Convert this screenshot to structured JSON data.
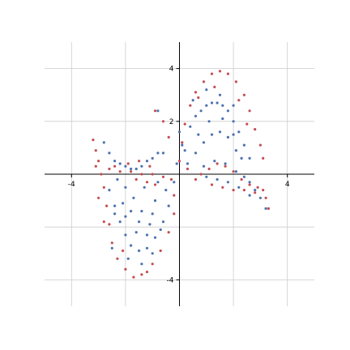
{
  "chart_data": {
    "type": "scatter",
    "title": "",
    "xlabel": "",
    "ylabel": "",
    "xlim": [
      -5,
      5
    ],
    "ylim": [
      -5,
      5
    ],
    "grid": true,
    "axes_through_origin": true,
    "x_ticks": [
      -4,
      4
    ],
    "y_ticks": [
      -4,
      2,
      4
    ],
    "x_tick_labels": [
      "-4",
      "4"
    ],
    "y_tick_labels": [
      "-4",
      "2",
      "4"
    ],
    "series": [
      {
        "color": "#4C72B0",
        "marker": "dot",
        "points": [
          [
            -2.8,
            1.2
          ],
          [
            -2.6,
            0.8
          ],
          [
            -2.4,
            0.5
          ],
          [
            -2.2,
            0.4
          ],
          [
            -2.0,
            0.3
          ],
          [
            -1.8,
            0.2
          ],
          [
            -1.6,
            0.2
          ],
          [
            -1.4,
            0.3
          ],
          [
            -1.2,
            0.5
          ],
          [
            -1.0,
            0.6
          ],
          [
            -0.8,
            0.8
          ],
          [
            -0.6,
            0.8
          ],
          [
            -2.6,
            -0.6
          ],
          [
            -2.4,
            -1.2
          ],
          [
            -2.2,
            -1.8
          ],
          [
            -2.0,
            -2.3
          ],
          [
            -1.8,
            -2.7
          ],
          [
            -1.5,
            -2.9
          ],
          [
            -1.2,
            -2.8
          ],
          [
            -0.9,
            -2.4
          ],
          [
            -0.6,
            -1.8
          ],
          [
            -0.4,
            -1.2
          ],
          [
            -2.3,
            -0.2
          ],
          [
            -2.0,
            -0.5
          ],
          [
            -1.7,
            -0.9
          ],
          [
            -1.4,
            -1.4
          ],
          [
            -1.1,
            -1.9
          ],
          [
            -0.9,
            -1.0
          ],
          [
            -1.3,
            -0.5
          ],
          [
            -1.8,
            -1.4
          ],
          [
            -2.1,
            -1.1
          ],
          [
            -1.6,
            -2.2
          ],
          [
            -1.2,
            -2.3
          ],
          [
            -0.8,
            -0.3
          ],
          [
            -0.5,
            -0.6
          ],
          [
            -2.5,
            -2.8
          ],
          [
            -1.9,
            -3.2
          ],
          [
            -1.4,
            -3.4
          ],
          [
            -0.8,
            2.4
          ],
          [
            0.0,
            1.6
          ],
          [
            0.2,
            0.9
          ],
          [
            0.4,
            1.8
          ],
          [
            0.6,
            2.2
          ],
          [
            0.8,
            2.4
          ],
          [
            1.0,
            2.6
          ],
          [
            1.2,
            2.7
          ],
          [
            1.4,
            2.7
          ],
          [
            1.6,
            2.6
          ],
          [
            1.8,
            2.4
          ],
          [
            2.0,
            2.0
          ],
          [
            2.2,
            1.6
          ],
          [
            2.4,
            1.1
          ],
          [
            2.6,
            0.6
          ],
          [
            0.3,
            0.4
          ],
          [
            0.6,
            0.8
          ],
          [
            0.9,
            1.2
          ],
          [
            1.2,
            1.5
          ],
          [
            1.5,
            1.6
          ],
          [
            1.8,
            1.4
          ],
          [
            2.1,
            0.9
          ],
          [
            0.5,
            2.8
          ],
          [
            1.0,
            3.2
          ],
          [
            1.5,
            3.0
          ],
          [
            2.0,
            2.6
          ],
          [
            0.9,
            0.3
          ],
          [
            1.3,
            0.5
          ],
          [
            1.7,
            0.4
          ],
          [
            2.1,
            0.1
          ],
          [
            2.4,
            -0.1
          ],
          [
            2.6,
            -0.3
          ],
          [
            2.8,
            -0.6
          ],
          [
            3.0,
            -0.9
          ],
          [
            3.2,
            -1.3
          ],
          [
            1.0,
            -0.1
          ],
          [
            1.4,
            -0.2
          ],
          [
            1.8,
            -0.3
          ],
          [
            2.2,
            -0.5
          ],
          [
            2.6,
            -0.8
          ],
          [
            -0.2,
            -0.3
          ],
          [
            -0.1,
            0.4
          ],
          [
            0.1,
            1.1
          ],
          [
            0.7,
            1.5
          ],
          [
            1.1,
            2.0
          ],
          [
            1.6,
            2.1
          ],
          [
            2.0,
            1.5
          ],
          [
            2.3,
            0.6
          ],
          [
            -1.0,
            -1.5
          ],
          [
            -1.5,
            -1.8
          ],
          [
            -2.0,
            -1.6
          ],
          [
            -2.4,
            -1.5
          ],
          [
            -0.7,
            -2.1
          ],
          [
            -1.0,
            -3.0
          ]
        ]
      },
      {
        "color": "#C44E52",
        "marker": "dot",
        "points": [
          [
            -3.2,
            1.3
          ],
          [
            -3.1,
            0.9
          ],
          [
            -3.0,
            0.5
          ],
          [
            -2.9,
            0.0
          ],
          [
            -2.8,
            -0.5
          ],
          [
            -2.7,
            -1.2
          ],
          [
            -2.6,
            -1.9
          ],
          [
            -2.5,
            -2.6
          ],
          [
            -2.3,
            -3.2
          ],
          [
            -2.0,
            -3.6
          ],
          [
            -1.7,
            -3.9
          ],
          [
            -1.4,
            -3.8
          ],
          [
            -1.0,
            -3.4
          ],
          [
            -0.7,
            -2.9
          ],
          [
            -0.4,
            -2.2
          ],
          [
            -0.2,
            -1.5
          ],
          [
            -2.6,
            0.2
          ],
          [
            -2.2,
            0.1
          ],
          [
            -1.8,
            0.1
          ],
          [
            -1.4,
            0.0
          ],
          [
            -1.0,
            0.0
          ],
          [
            -0.6,
            -0.1
          ],
          [
            -0.3,
            -0.2
          ],
          [
            -1.6,
            -0.2
          ],
          [
            -1.2,
            -0.3
          ],
          [
            -0.9,
            -0.4
          ],
          [
            -1.9,
            0.4
          ],
          [
            -1.5,
            0.5
          ],
          [
            -1.1,
            0.3
          ],
          [
            0.0,
            0.5
          ],
          [
            0.1,
            1.2
          ],
          [
            0.2,
            1.9
          ],
          [
            0.4,
            2.6
          ],
          [
            0.6,
            3.1
          ],
          [
            0.9,
            3.5
          ],
          [
            1.2,
            3.8
          ],
          [
            1.5,
            3.9
          ],
          [
            1.8,
            3.8
          ],
          [
            2.1,
            3.5
          ],
          [
            2.4,
            3.0
          ],
          [
            2.6,
            2.4
          ],
          [
            2.8,
            1.7
          ],
          [
            3.0,
            1.1
          ],
          [
            3.1,
            0.6
          ],
          [
            0.8,
            0.0
          ],
          [
            1.1,
            0.2
          ],
          [
            1.4,
            0.4
          ],
          [
            1.7,
            0.3
          ],
          [
            2.0,
            0.1
          ],
          [
            2.3,
            -0.2
          ],
          [
            2.6,
            -0.4
          ],
          [
            2.9,
            -0.5
          ],
          [
            3.1,
            -0.6
          ],
          [
            3.2,
            -0.9
          ],
          [
            3.3,
            -1.3
          ],
          [
            1.2,
            -0.4
          ],
          [
            1.6,
            -0.5
          ],
          [
            2.0,
            -0.6
          ],
          [
            2.4,
            -0.6
          ],
          [
            2.8,
            -0.7
          ],
          [
            -0.4,
            1.4
          ],
          [
            -0.6,
            2.0
          ],
          [
            -0.9,
            2.4
          ],
          [
            -0.2,
            -0.8
          ],
          [
            0.3,
            0.2
          ],
          [
            0.6,
            -0.2
          ],
          [
            1.3,
            3.3
          ],
          [
            0.7,
            2.9
          ],
          [
            2.2,
            2.8
          ],
          [
            2.5,
            1.9
          ],
          [
            -1.2,
            -3.7
          ],
          [
            -2.1,
            -2.9
          ],
          [
            -2.8,
            -1.8
          ],
          [
            -3.0,
            -0.9
          ],
          [
            -3.1,
            0.3
          ],
          [
            -2.4,
            0.3
          ]
        ]
      }
    ]
  }
}
